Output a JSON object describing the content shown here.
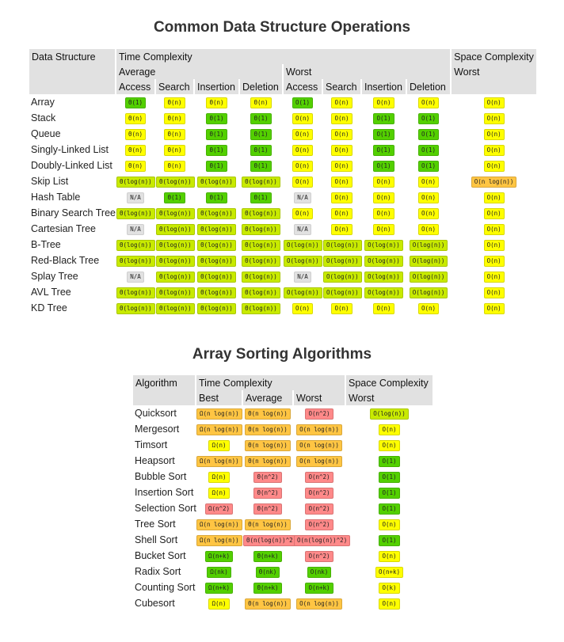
{
  "colors": {
    "green": "#53d000",
    "lime": "#c8ea00",
    "yellow": "#ffff00",
    "orange": "#ffc543",
    "red": "#ff8989",
    "gray": "#e1e1e1"
  },
  "ds": {
    "title": "Common Data Structure Operations",
    "headers": {
      "structure": "Data Structure",
      "time": "Time Complexity",
      "space": "Space Complexity",
      "average": "Average",
      "worst": "Worst",
      "space_worst": "Worst"
    },
    "ops": [
      "Access",
      "Search",
      "Insertion",
      "Deletion",
      "Access",
      "Search",
      "Insertion",
      "Deletion"
    ],
    "rows": [
      {
        "name": "Array",
        "cells": [
          [
            "Θ(1)",
            "green"
          ],
          [
            "Θ(n)",
            "yellow"
          ],
          [
            "Θ(n)",
            "yellow"
          ],
          [
            "Θ(n)",
            "yellow"
          ],
          [
            "O(1)",
            "green"
          ],
          [
            "O(n)",
            "yellow"
          ],
          [
            "O(n)",
            "yellow"
          ],
          [
            "O(n)",
            "yellow"
          ],
          [
            "O(n)",
            "yellow"
          ]
        ]
      },
      {
        "name": "Stack",
        "cells": [
          [
            "Θ(n)",
            "yellow"
          ],
          [
            "Θ(n)",
            "yellow"
          ],
          [
            "Θ(1)",
            "green"
          ],
          [
            "Θ(1)",
            "green"
          ],
          [
            "O(n)",
            "yellow"
          ],
          [
            "O(n)",
            "yellow"
          ],
          [
            "O(1)",
            "green"
          ],
          [
            "O(1)",
            "green"
          ],
          [
            "O(n)",
            "yellow"
          ]
        ]
      },
      {
        "name": "Queue",
        "cells": [
          [
            "Θ(n)",
            "yellow"
          ],
          [
            "Θ(n)",
            "yellow"
          ],
          [
            "Θ(1)",
            "green"
          ],
          [
            "Θ(1)",
            "green"
          ],
          [
            "O(n)",
            "yellow"
          ],
          [
            "O(n)",
            "yellow"
          ],
          [
            "O(1)",
            "green"
          ],
          [
            "O(1)",
            "green"
          ],
          [
            "O(n)",
            "yellow"
          ]
        ]
      },
      {
        "name": "Singly-Linked List",
        "cells": [
          [
            "Θ(n)",
            "yellow"
          ],
          [
            "Θ(n)",
            "yellow"
          ],
          [
            "Θ(1)",
            "green"
          ],
          [
            "Θ(1)",
            "green"
          ],
          [
            "O(n)",
            "yellow"
          ],
          [
            "O(n)",
            "yellow"
          ],
          [
            "O(1)",
            "green"
          ],
          [
            "O(1)",
            "green"
          ],
          [
            "O(n)",
            "yellow"
          ]
        ]
      },
      {
        "name": "Doubly-Linked List",
        "cells": [
          [
            "Θ(n)",
            "yellow"
          ],
          [
            "Θ(n)",
            "yellow"
          ],
          [
            "Θ(1)",
            "green"
          ],
          [
            "Θ(1)",
            "green"
          ],
          [
            "O(n)",
            "yellow"
          ],
          [
            "O(n)",
            "yellow"
          ],
          [
            "O(1)",
            "green"
          ],
          [
            "O(1)",
            "green"
          ],
          [
            "O(n)",
            "yellow"
          ]
        ]
      },
      {
        "name": "Skip List",
        "cells": [
          [
            "Θ(log(n))",
            "lime"
          ],
          [
            "Θ(log(n))",
            "lime"
          ],
          [
            "Θ(log(n))",
            "lime"
          ],
          [
            "Θ(log(n))",
            "lime"
          ],
          [
            "O(n)",
            "yellow"
          ],
          [
            "O(n)",
            "yellow"
          ],
          [
            "O(n)",
            "yellow"
          ],
          [
            "O(n)",
            "yellow"
          ],
          [
            "O(n log(n))",
            "orange"
          ]
        ]
      },
      {
        "name": "Hash Table",
        "cells": [
          [
            "N/A",
            "gray"
          ],
          [
            "Θ(1)",
            "green"
          ],
          [
            "Θ(1)",
            "green"
          ],
          [
            "Θ(1)",
            "green"
          ],
          [
            "N/A",
            "gray"
          ],
          [
            "O(n)",
            "yellow"
          ],
          [
            "O(n)",
            "yellow"
          ],
          [
            "O(n)",
            "yellow"
          ],
          [
            "O(n)",
            "yellow"
          ]
        ]
      },
      {
        "name": "Binary Search Tree",
        "cells": [
          [
            "Θ(log(n))",
            "lime"
          ],
          [
            "Θ(log(n))",
            "lime"
          ],
          [
            "Θ(log(n))",
            "lime"
          ],
          [
            "Θ(log(n))",
            "lime"
          ],
          [
            "O(n)",
            "yellow"
          ],
          [
            "O(n)",
            "yellow"
          ],
          [
            "O(n)",
            "yellow"
          ],
          [
            "O(n)",
            "yellow"
          ],
          [
            "O(n)",
            "yellow"
          ]
        ]
      },
      {
        "name": "Cartesian Tree",
        "cells": [
          [
            "N/A",
            "gray"
          ],
          [
            "Θ(log(n))",
            "lime"
          ],
          [
            "Θ(log(n))",
            "lime"
          ],
          [
            "Θ(log(n))",
            "lime"
          ],
          [
            "N/A",
            "gray"
          ],
          [
            "O(n)",
            "yellow"
          ],
          [
            "O(n)",
            "yellow"
          ],
          [
            "O(n)",
            "yellow"
          ],
          [
            "O(n)",
            "yellow"
          ]
        ]
      },
      {
        "name": "B-Tree",
        "cells": [
          [
            "Θ(log(n))",
            "lime"
          ],
          [
            "Θ(log(n))",
            "lime"
          ],
          [
            "Θ(log(n))",
            "lime"
          ],
          [
            "Θ(log(n))",
            "lime"
          ],
          [
            "O(log(n))",
            "lime"
          ],
          [
            "O(log(n))",
            "lime"
          ],
          [
            "O(log(n))",
            "lime"
          ],
          [
            "O(log(n))",
            "lime"
          ],
          [
            "O(n)",
            "yellow"
          ]
        ]
      },
      {
        "name": "Red-Black Tree",
        "cells": [
          [
            "Θ(log(n))",
            "lime"
          ],
          [
            "Θ(log(n))",
            "lime"
          ],
          [
            "Θ(log(n))",
            "lime"
          ],
          [
            "Θ(log(n))",
            "lime"
          ],
          [
            "O(log(n))",
            "lime"
          ],
          [
            "O(log(n))",
            "lime"
          ],
          [
            "O(log(n))",
            "lime"
          ],
          [
            "O(log(n))",
            "lime"
          ],
          [
            "O(n)",
            "yellow"
          ]
        ]
      },
      {
        "name": "Splay Tree",
        "cells": [
          [
            "N/A",
            "gray"
          ],
          [
            "Θ(log(n))",
            "lime"
          ],
          [
            "Θ(log(n))",
            "lime"
          ],
          [
            "Θ(log(n))",
            "lime"
          ],
          [
            "N/A",
            "gray"
          ],
          [
            "O(log(n))",
            "lime"
          ],
          [
            "O(log(n))",
            "lime"
          ],
          [
            "O(log(n))",
            "lime"
          ],
          [
            "O(n)",
            "yellow"
          ]
        ]
      },
      {
        "name": "AVL Tree",
        "cells": [
          [
            "Θ(log(n))",
            "lime"
          ],
          [
            "Θ(log(n))",
            "lime"
          ],
          [
            "Θ(log(n))",
            "lime"
          ],
          [
            "Θ(log(n))",
            "lime"
          ],
          [
            "O(log(n))",
            "lime"
          ],
          [
            "O(log(n))",
            "lime"
          ],
          [
            "O(log(n))",
            "lime"
          ],
          [
            "O(log(n))",
            "lime"
          ],
          [
            "O(n)",
            "yellow"
          ]
        ]
      },
      {
        "name": "KD Tree",
        "cells": [
          [
            "Θ(log(n))",
            "lime"
          ],
          [
            "Θ(log(n))",
            "lime"
          ],
          [
            "Θ(log(n))",
            "lime"
          ],
          [
            "Θ(log(n))",
            "lime"
          ],
          [
            "O(n)",
            "yellow"
          ],
          [
            "O(n)",
            "yellow"
          ],
          [
            "O(n)",
            "yellow"
          ],
          [
            "O(n)",
            "yellow"
          ],
          [
            "O(n)",
            "yellow"
          ]
        ]
      }
    ]
  },
  "sort": {
    "title": "Array Sorting Algorithms",
    "headers": {
      "algorithm": "Algorithm",
      "time": "Time Complexity",
      "space": "Space Complexity",
      "best": "Best",
      "average": "Average",
      "worst": "Worst",
      "space_worst": "Worst"
    },
    "rows": [
      {
        "name": "Quicksort",
        "cells": [
          [
            "Ω(n log(n))",
            "orange"
          ],
          [
            "Θ(n log(n))",
            "orange"
          ],
          [
            "O(n^2)",
            "red"
          ],
          [
            "O(log(n))",
            "lime"
          ]
        ]
      },
      {
        "name": "Mergesort",
        "cells": [
          [
            "Ω(n log(n))",
            "orange"
          ],
          [
            "Θ(n log(n))",
            "orange"
          ],
          [
            "O(n log(n))",
            "orange"
          ],
          [
            "O(n)",
            "yellow"
          ]
        ]
      },
      {
        "name": "Timsort",
        "cells": [
          [
            "Ω(n)",
            "yellow"
          ],
          [
            "Θ(n log(n))",
            "orange"
          ],
          [
            "O(n log(n))",
            "orange"
          ],
          [
            "O(n)",
            "yellow"
          ]
        ]
      },
      {
        "name": "Heapsort",
        "cells": [
          [
            "Ω(n log(n))",
            "orange"
          ],
          [
            "Θ(n log(n))",
            "orange"
          ],
          [
            "O(n log(n))",
            "orange"
          ],
          [
            "O(1)",
            "green"
          ]
        ]
      },
      {
        "name": "Bubble Sort",
        "cells": [
          [
            "Ω(n)",
            "yellow"
          ],
          [
            "Θ(n^2)",
            "red"
          ],
          [
            "O(n^2)",
            "red"
          ],
          [
            "O(1)",
            "green"
          ]
        ]
      },
      {
        "name": "Insertion Sort",
        "cells": [
          [
            "Ω(n)",
            "yellow"
          ],
          [
            "Θ(n^2)",
            "red"
          ],
          [
            "O(n^2)",
            "red"
          ],
          [
            "O(1)",
            "green"
          ]
        ]
      },
      {
        "name": "Selection Sort",
        "cells": [
          [
            "Ω(n^2)",
            "red"
          ],
          [
            "Θ(n^2)",
            "red"
          ],
          [
            "O(n^2)",
            "red"
          ],
          [
            "O(1)",
            "green"
          ]
        ]
      },
      {
        "name": "Tree Sort",
        "cells": [
          [
            "Ω(n log(n))",
            "orange"
          ],
          [
            "Θ(n log(n))",
            "orange"
          ],
          [
            "O(n^2)",
            "red"
          ],
          [
            "O(n)",
            "yellow"
          ]
        ]
      },
      {
        "name": "Shell Sort",
        "cells": [
          [
            "Ω(n log(n))",
            "orange"
          ],
          [
            "Θ(n(log(n))^2)",
            "red"
          ],
          [
            "O(n(log(n))^2)",
            "red"
          ],
          [
            "O(1)",
            "green"
          ]
        ]
      },
      {
        "name": "Bucket Sort",
        "cells": [
          [
            "Ω(n+k)",
            "green"
          ],
          [
            "Θ(n+k)",
            "green"
          ],
          [
            "O(n^2)",
            "red"
          ],
          [
            "O(n)",
            "yellow"
          ]
        ]
      },
      {
        "name": "Radix Sort",
        "cells": [
          [
            "Ω(nk)",
            "green"
          ],
          [
            "Θ(nk)",
            "green"
          ],
          [
            "O(nk)",
            "green"
          ],
          [
            "O(n+k)",
            "yellow"
          ]
        ]
      },
      {
        "name": "Counting Sort",
        "cells": [
          [
            "Ω(n+k)",
            "green"
          ],
          [
            "Θ(n+k)",
            "green"
          ],
          [
            "O(n+k)",
            "green"
          ],
          [
            "O(k)",
            "yellow"
          ]
        ]
      },
      {
        "name": "Cubesort",
        "cells": [
          [
            "Ω(n)",
            "yellow"
          ],
          [
            "Θ(n log(n))",
            "orange"
          ],
          [
            "O(n log(n))",
            "orange"
          ],
          [
            "O(n)",
            "yellow"
          ]
        ]
      }
    ]
  }
}
